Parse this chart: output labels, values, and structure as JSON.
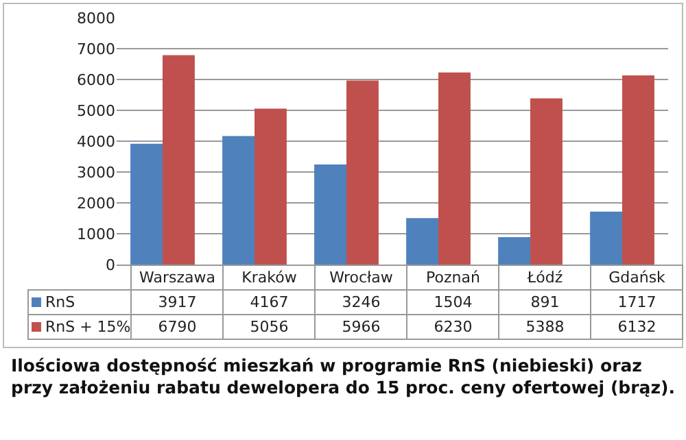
{
  "chart_data": {
    "type": "bar",
    "categories": [
      "Warszawa",
      "Kraków",
      "Wrocław",
      "Poznań",
      "Łódź",
      "Gdańsk"
    ],
    "series": [
      {
        "name": "RnS",
        "color": "#4f81bd",
        "values": [
          3917,
          4167,
          3246,
          1504,
          891,
          1717
        ]
      },
      {
        "name": "RnS + 15%",
        "color": "#c0504d",
        "values": [
          6790,
          5056,
          5966,
          6230,
          5388,
          6132
        ]
      }
    ],
    "ylim": [
      0,
      8000
    ],
    "yticks": [
      0,
      1000,
      2000,
      3000,
      4000,
      5000,
      6000,
      7000,
      8000
    ],
    "grid": "y",
    "data_labels": true,
    "legend": "bottom left",
    "annotations": [
      "Ilościowa dostępność mieszkań w programie RnS (niebieski) oraz przy założeniu rabatu dewelopera do 15 proc. ceny ofertowej (brąz)."
    ]
  }
}
